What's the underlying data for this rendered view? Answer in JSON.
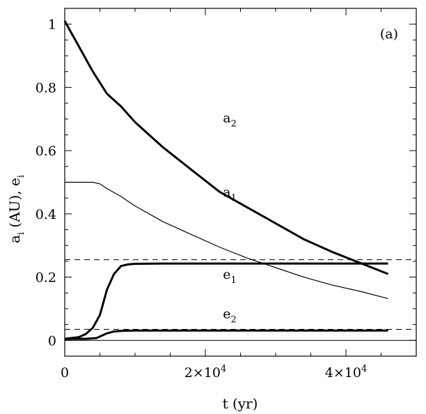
{
  "chart_data": {
    "type": "line",
    "panel_label": "(a)",
    "xlabel": "t (yr)",
    "ylabel": "a_i (AU), e_i",
    "xlim": [
      0,
      50000
    ],
    "ylim": [
      -0.05,
      1.05
    ],
    "x_ticks": [
      {
        "value": 0,
        "label": "0"
      },
      {
        "value": 20000,
        "label": "2×10",
        "exp": "4"
      },
      {
        "value": 40000,
        "label": "4×10",
        "exp": "4"
      }
    ],
    "y_ticks": [
      {
        "value": 0,
        "label": "0"
      },
      {
        "value": 0.2,
        "label": "0.2"
      },
      {
        "value": 0.4,
        "label": "0.4"
      },
      {
        "value": 0.6,
        "label": "0.6"
      },
      {
        "value": 0.8,
        "label": "0.8"
      },
      {
        "value": 1,
        "label": "1"
      }
    ],
    "reference_lines": [
      {
        "y": 0.255,
        "style": "dashed"
      },
      {
        "y": 0.035,
        "style": "dashed"
      },
      {
        "y": 0.0,
        "style": "solid"
      }
    ],
    "series": [
      {
        "name": "a2",
        "label_base": "a",
        "label_sub": "2",
        "label_at": [
          22500,
          0.69
        ],
        "thick": true,
        "x": [
          0,
          2000,
          4000,
          6000,
          8000,
          10000,
          14000,
          18000,
          22000,
          26000,
          30000,
          34000,
          38000,
          42000,
          46000
        ],
        "y": [
          1.01,
          0.93,
          0.85,
          0.78,
          0.74,
          0.69,
          0.61,
          0.54,
          0.47,
          0.42,
          0.37,
          0.32,
          0.28,
          0.245,
          0.21
        ]
      },
      {
        "name": "a1",
        "label_base": "a",
        "label_sub": "1",
        "label_at": [
          22500,
          0.455
        ],
        "thick": false,
        "x": [
          0,
          2000,
          4000,
          5000,
          6000,
          8000,
          10000,
          14000,
          18000,
          22000,
          26000,
          30000,
          34000,
          38000,
          42000,
          46000
        ],
        "y": [
          0.5,
          0.5,
          0.5,
          0.495,
          0.48,
          0.455,
          0.425,
          0.375,
          0.335,
          0.295,
          0.26,
          0.23,
          0.2,
          0.175,
          0.155,
          0.132
        ]
      },
      {
        "name": "e1",
        "label_base": "e",
        "label_sub": "1",
        "label_at": [
          22500,
          0.195
        ],
        "thick": true,
        "x": [
          0,
          2000,
          3000,
          4000,
          5000,
          5500,
          6000,
          7000,
          8000,
          9000,
          10000,
          14000,
          20000,
          30000,
          40000,
          46000
        ],
        "y": [
          0.005,
          0.01,
          0.02,
          0.04,
          0.08,
          0.12,
          0.16,
          0.21,
          0.235,
          0.24,
          0.242,
          0.243,
          0.243,
          0.243,
          0.243,
          0.243
        ]
      },
      {
        "name": "e2",
        "label_base": "e",
        "label_sub": "2",
        "label_at": [
          22500,
          0.07
        ],
        "thick": true,
        "x": [
          0,
          3000,
          4500,
          5000,
          6000,
          7000,
          8000,
          10000,
          20000,
          30000,
          40000,
          46000
        ],
        "y": [
          0.005,
          0.005,
          0.007,
          0.012,
          0.022,
          0.028,
          0.03,
          0.031,
          0.031,
          0.031,
          0.031,
          0.031
        ]
      }
    ]
  }
}
